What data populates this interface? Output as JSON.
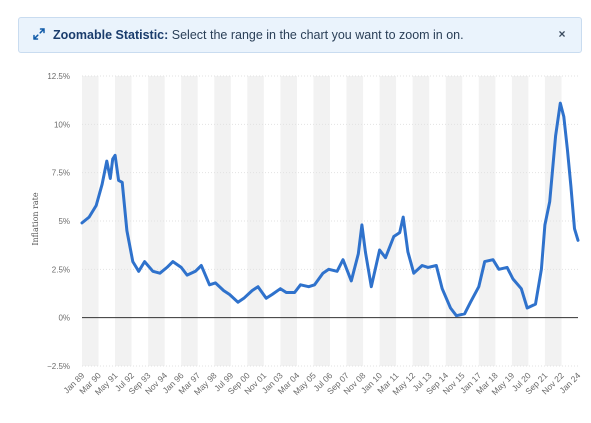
{
  "banner": {
    "title": "Zoomable Statistic:",
    "message": " Select the range in the chart you want to zoom in on.",
    "close": "×",
    "icon": "expand-arrows-icon"
  },
  "colors": {
    "line": "#2f72cc",
    "band": "#f2f2f2",
    "zero_line": "#333333",
    "banner_bg": "#eaf3fc"
  },
  "chart_data": {
    "type": "line",
    "title": "",
    "xlabel": "",
    "ylabel": "Inflation rate",
    "ylim": [
      -2.5,
      12.5
    ],
    "yticks": [
      -2.5,
      0,
      2.5,
      5,
      7.5,
      10,
      12.5
    ],
    "ytick_labels": [
      "−2.5%",
      "0%",
      "2.5%",
      "5%",
      "7.5%",
      "10%",
      "12.5%"
    ],
    "xlim": [
      "1989-01",
      "2024-01"
    ],
    "x_tick_labels": [
      "Jan 89",
      "Mar 90",
      "May 91",
      "Jul 92",
      "Sep 93",
      "Nov 94",
      "Jan 96",
      "Mar 97",
      "May 98",
      "Jul 99",
      "Sep 00",
      "Nov 01",
      "Jan 03",
      "Mar 04",
      "May 05",
      "Jul 06",
      "Sep 07",
      "Nov 08",
      "Jan 10",
      "Mar 11",
      "May 12",
      "Jul 13",
      "Sep 14",
      "Nov 15",
      "Jan 17",
      "Mar 18",
      "May 19",
      "Jul 20",
      "Sep 21",
      "Nov 22",
      "Jan 24"
    ],
    "grid": "horizontal",
    "legend": "none",
    "series": [
      {
        "x": [
          "1989-01",
          "1989-07",
          "1990-01",
          "1990-06",
          "1990-10",
          "1991-01",
          "1991-03",
          "1991-05",
          "1991-08",
          "1991-11",
          "1992-03",
          "1992-08",
          "1993-01",
          "1993-06",
          "1994-01",
          "1994-07",
          "1995-01",
          "1995-06",
          "1996-01",
          "1996-06",
          "1997-01",
          "1997-06",
          "1998-01",
          "1998-06",
          "1999-01",
          "1999-06",
          "2000-01",
          "2000-06",
          "2001-01",
          "2001-06",
          "2002-01",
          "2002-06",
          "2003-01",
          "2003-06",
          "2004-01",
          "2004-06",
          "2005-01",
          "2005-06",
          "2006-01",
          "2006-06",
          "2007-01",
          "2007-06",
          "2008-01",
          "2008-04",
          "2008-07",
          "2008-10",
          "2009-01",
          "2009-06",
          "2010-01",
          "2010-06",
          "2011-01",
          "2011-06",
          "2011-09",
          "2012-01",
          "2012-06",
          "2013-01",
          "2013-06",
          "2014-01",
          "2014-06",
          "2015-01",
          "2015-06",
          "2016-01",
          "2016-06",
          "2017-01",
          "2017-06",
          "2018-01",
          "2018-06",
          "2019-01",
          "2019-06",
          "2020-01",
          "2020-06",
          "2021-01",
          "2021-06",
          "2021-09",
          "2022-01",
          "2022-06",
          "2022-10",
          "2023-01",
          "2023-04",
          "2023-07",
          "2023-10",
          "2024-01"
        ],
        "y": [
          4.9,
          5.2,
          5.8,
          6.9,
          8.1,
          7.2,
          8.2,
          8.4,
          7.1,
          7.0,
          4.5,
          2.9,
          2.4,
          2.9,
          2.4,
          2.3,
          2.6,
          2.9,
          2.6,
          2.2,
          2.4,
          2.7,
          1.7,
          1.8,
          1.4,
          1.2,
          0.8,
          1.0,
          1.4,
          1.6,
          1.0,
          1.2,
          1.5,
          1.3,
          1.3,
          1.7,
          1.6,
          1.7,
          2.3,
          2.5,
          2.4,
          3.0,
          1.9,
          2.6,
          3.3,
          4.8,
          3.4,
          1.6,
          3.5,
          3.1,
          4.2,
          4.4,
          5.2,
          3.4,
          2.3,
          2.7,
          2.6,
          2.7,
          1.5,
          0.5,
          0.1,
          0.2,
          0.8,
          1.6,
          2.9,
          3.0,
          2.5,
          2.6,
          2.0,
          1.5,
          0.5,
          0.7,
          2.5,
          4.8,
          6.0,
          9.4,
          11.1,
          10.4,
          8.7,
          6.8,
          4.6,
          4.0
        ]
      }
    ]
  }
}
